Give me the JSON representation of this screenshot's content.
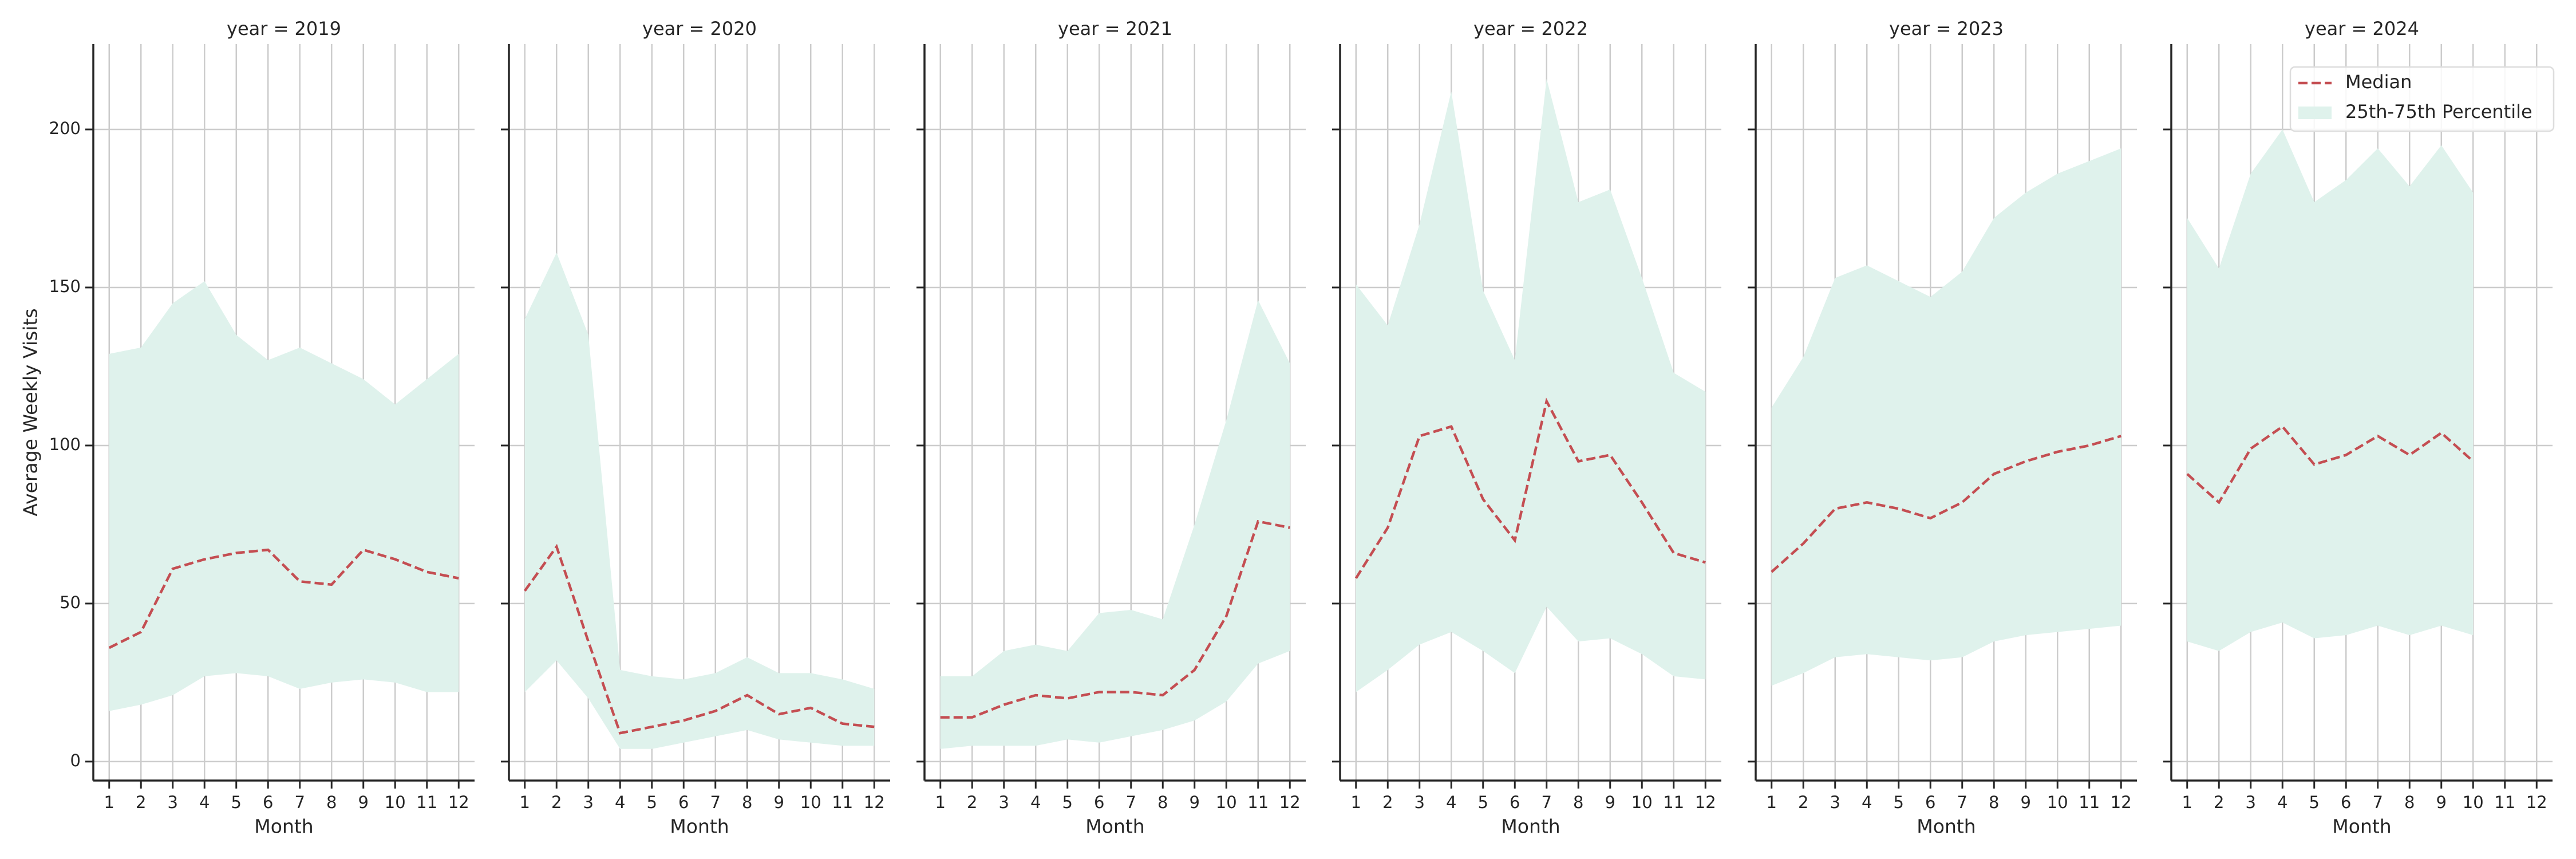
{
  "chart_data": [
    {
      "type": "line",
      "title": "year = 2019",
      "xlabel": "Month",
      "ylabel": "Average Weekly Visits",
      "show_ytick_labels": true,
      "x": [
        1,
        2,
        3,
        4,
        5,
        6,
        7,
        8,
        9,
        10,
        11,
        12
      ],
      "xlim": [
        0.5,
        12.5
      ],
      "xticks": [
        1,
        2,
        3,
        4,
        5,
        6,
        7,
        8,
        9,
        10,
        11,
        12
      ],
      "ylim": [
        -6,
        227
      ],
      "yticks": [
        0,
        50,
        100,
        150,
        200
      ],
      "grid": true,
      "series": [
        {
          "color": "#c44e52",
          "dash": true,
          "values": [
            36,
            41,
            61,
            64,
            66,
            67,
            57,
            56,
            67,
            64,
            60,
            58
          ]
        },
        {
          "type": "band",
          "color": "#dff2ec",
          "lower": [
            16,
            18,
            21,
            27,
            28,
            27,
            23,
            25,
            26,
            25,
            22,
            22
          ],
          "upper": [
            129,
            131,
            145,
            152,
            135,
            127,
            131,
            126,
            121,
            113,
            121,
            129
          ]
        }
      ]
    },
    {
      "type": "line",
      "title": "year = 2020",
      "xlabel": "Month",
      "x": [
        1,
        2,
        3,
        4,
        5,
        6,
        7,
        8,
        9,
        10,
        11,
        12
      ],
      "xlim": [
        0.5,
        12.5
      ],
      "xticks": [
        1,
        2,
        3,
        4,
        5,
        6,
        7,
        8,
        9,
        10,
        11,
        12
      ],
      "ylim": [
        -6,
        227
      ],
      "yticks": [
        0,
        50,
        100,
        150,
        200
      ],
      "grid": true,
      "series": [
        {
          "color": "#c44e52",
          "dash": true,
          "values": [
            54,
            68,
            38,
            9,
            11,
            13,
            16,
            21,
            15,
            17,
            12,
            11
          ]
        },
        {
          "type": "band",
          "color": "#dff2ec",
          "lower": [
            22,
            32,
            20,
            4,
            4,
            6,
            8,
            10,
            7,
            6,
            5,
            5
          ],
          "upper": [
            140,
            161,
            135,
            29,
            27,
            26,
            28,
            33,
            28,
            28,
            26,
            23
          ]
        }
      ]
    },
    {
      "type": "line",
      "title": "year = 2021",
      "xlabel": "Month",
      "x": [
        1,
        2,
        3,
        4,
        5,
        6,
        7,
        8,
        9,
        10,
        11,
        12
      ],
      "xlim": [
        0.5,
        12.5
      ],
      "xticks": [
        1,
        2,
        3,
        4,
        5,
        6,
        7,
        8,
        9,
        10,
        11,
        12
      ],
      "ylim": [
        -6,
        227
      ],
      "yticks": [
        0,
        50,
        100,
        150,
        200
      ],
      "grid": true,
      "series": [
        {
          "color": "#c44e52",
          "dash": true,
          "values": [
            14,
            14,
            18,
            21,
            20,
            22,
            22,
            21,
            29,
            46,
            76,
            74
          ]
        },
        {
          "type": "band",
          "color": "#dff2ec",
          "lower": [
            4,
            5,
            5,
            5,
            7,
            6,
            8,
            10,
            13,
            19,
            31,
            35
          ],
          "upper": [
            27,
            27,
            35,
            37,
            35,
            47,
            48,
            45,
            75,
            108,
            146,
            126
          ]
        }
      ]
    },
    {
      "type": "line",
      "title": "year = 2022",
      "xlabel": "Month",
      "x": [
        1,
        2,
        3,
        4,
        5,
        6,
        7,
        8,
        9,
        10,
        11,
        12
      ],
      "xlim": [
        0.5,
        12.5
      ],
      "xticks": [
        1,
        2,
        3,
        4,
        5,
        6,
        7,
        8,
        9,
        10,
        11,
        12
      ],
      "ylim": [
        -6,
        227
      ],
      "yticks": [
        0,
        50,
        100,
        150,
        200
      ],
      "grid": true,
      "series": [
        {
          "color": "#c44e52",
          "dash": true,
          "values": [
            58,
            74,
            103,
            106,
            83,
            70,
            114,
            95,
            97,
            82,
            66,
            63
          ]
        },
        {
          "type": "band",
          "color": "#dff2ec",
          "lower": [
            22,
            29,
            37,
            41,
            35,
            28,
            49,
            38,
            39,
            34,
            27,
            26
          ],
          "upper": [
            151,
            138,
            170,
            212,
            149,
            127,
            216,
            177,
            181,
            153,
            123,
            117
          ]
        }
      ]
    },
    {
      "type": "line",
      "title": "year = 2023",
      "xlabel": "Month",
      "x": [
        1,
        2,
        3,
        4,
        5,
        6,
        7,
        8,
        9,
        10,
        11,
        12
      ],
      "xlim": [
        0.5,
        12.5
      ],
      "xticks": [
        1,
        2,
        3,
        4,
        5,
        6,
        7,
        8,
        9,
        10,
        11,
        12
      ],
      "ylim": [
        -6,
        227
      ],
      "yticks": [
        0,
        50,
        100,
        150,
        200
      ],
      "grid": true,
      "series": [
        {
          "color": "#c44e52",
          "dash": true,
          "values": [
            60,
            69,
            80,
            82,
            80,
            77,
            82,
            91,
            95,
            98,
            100,
            103
          ]
        },
        {
          "type": "band",
          "color": "#dff2ec",
          "lower": [
            24,
            28,
            33,
            34,
            33,
            32,
            33,
            38,
            40,
            41,
            42,
            43
          ],
          "upper": [
            112,
            128,
            153,
            157,
            152,
            147,
            155,
            172,
            180,
            186,
            190,
            194
          ]
        }
      ]
    },
    {
      "type": "line",
      "title": "year = 2024",
      "xlabel": "Month",
      "legend": "upper right",
      "x": [
        1,
        2,
        3,
        4,
        5,
        6,
        7,
        8,
        9,
        10,
        11,
        12
      ],
      "xlim": [
        0.5,
        12.5
      ],
      "xticks": [
        1,
        2,
        3,
        4,
        5,
        6,
        7,
        8,
        9,
        10,
        11,
        12
      ],
      "ylim": [
        -6,
        227
      ],
      "yticks": [
        0,
        50,
        100,
        150,
        200
      ],
      "grid": true,
      "series": [
        {
          "name": "Median",
          "color": "#c44e52",
          "dash": true,
          "values": [
            91,
            82,
            99,
            106,
            94,
            97,
            103,
            97,
            104,
            95,
            null,
            null
          ]
        },
        {
          "type": "band",
          "name": "25th-75th Percentile",
          "color": "#dff2ec",
          "lower": [
            38,
            35,
            41,
            44,
            39,
            40,
            43,
            40,
            43,
            40,
            null,
            null
          ],
          "upper": [
            172,
            156,
            186,
            200,
            177,
            184,
            194,
            182,
            195,
            180,
            null,
            null
          ]
        }
      ]
    }
  ]
}
